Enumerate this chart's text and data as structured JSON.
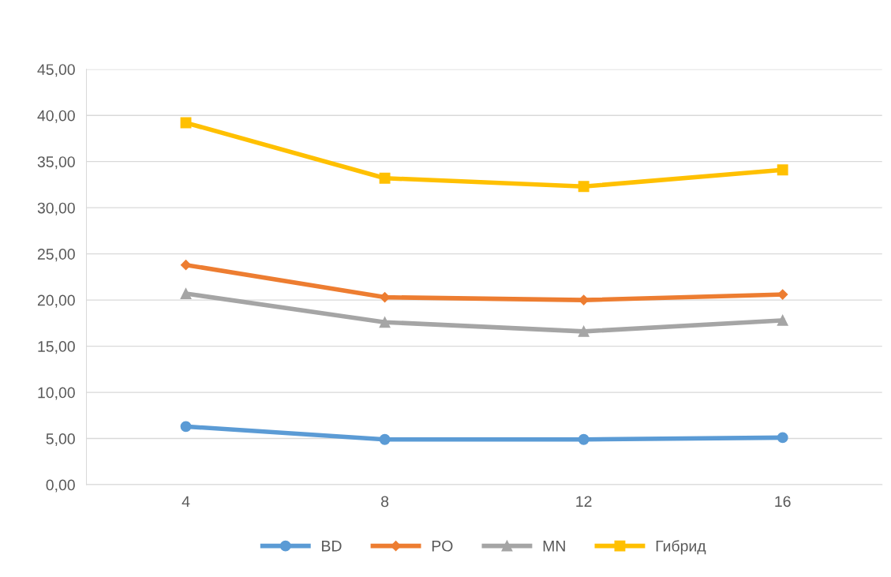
{
  "chart_data": {
    "type": "line",
    "categories": [
      "4",
      "8",
      "12",
      "16"
    ],
    "series": [
      {
        "name": "BD",
        "color": "#5b9bd5",
        "marker": "circle",
        "values": [
          6.3,
          4.9,
          4.9,
          5.1
        ]
      },
      {
        "name": "PO",
        "color": "#ed7d31",
        "marker": "diamond",
        "values": [
          23.8,
          20.3,
          20.0,
          20.6
        ]
      },
      {
        "name": "MN",
        "color": "#a5a5a5",
        "marker": "triangle",
        "values": [
          20.7,
          17.6,
          16.6,
          17.8
        ]
      },
      {
        "name": "Гибрид",
        "color": "#ffc000",
        "marker": "square",
        "values": [
          39.2,
          33.2,
          32.3,
          34.1
        ]
      }
    ],
    "ylim": [
      0,
      45
    ],
    "yticks": [
      {
        "value": 0,
        "label": "0,00"
      },
      {
        "value": 5,
        "label": "5,00"
      },
      {
        "value": 10,
        "label": "10,00"
      },
      {
        "value": 15,
        "label": "15,00"
      },
      {
        "value": 20,
        "label": "20,00"
      },
      {
        "value": 25,
        "label": "25,00"
      },
      {
        "value": 30,
        "label": "30,00"
      },
      {
        "value": 35,
        "label": "35,00"
      },
      {
        "value": 40,
        "label": "40,00"
      },
      {
        "value": 45,
        "label": "45,00"
      }
    ],
    "grid": "y",
    "legend": "bottom"
  }
}
